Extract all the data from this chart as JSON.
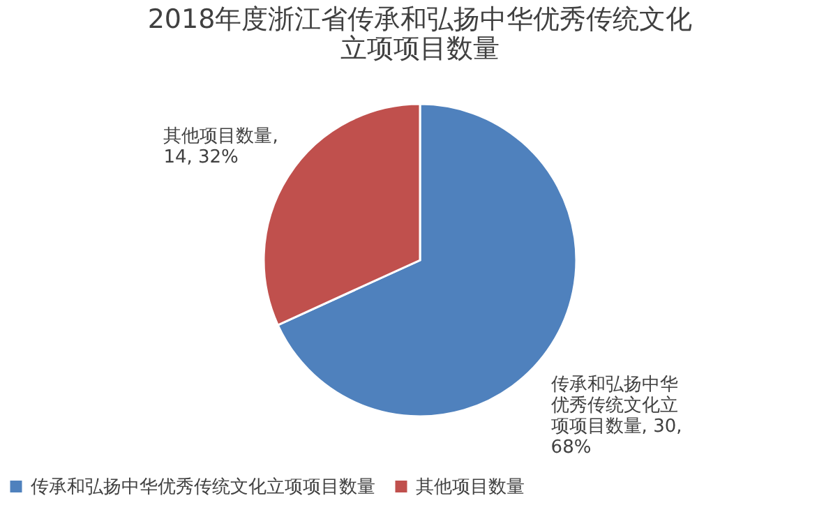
{
  "chart_data": {
    "type": "pie",
    "title": "2018年度浙江省传承和弘扬中华优秀传统文化立项项目数量",
    "categories": [
      "传承和弘扬中华优秀传统文化立项项目数量",
      "其他项目数量"
    ],
    "values": [
      30,
      14
    ],
    "colors": [
      "#4f81bd",
      "#c0504d"
    ],
    "value_labels": [
      "传承和弘扬中华优秀传统文化立项项目数量, 30, 68%",
      "其他项目数量, 14, 32%"
    ],
    "legend": "bottom"
  }
}
